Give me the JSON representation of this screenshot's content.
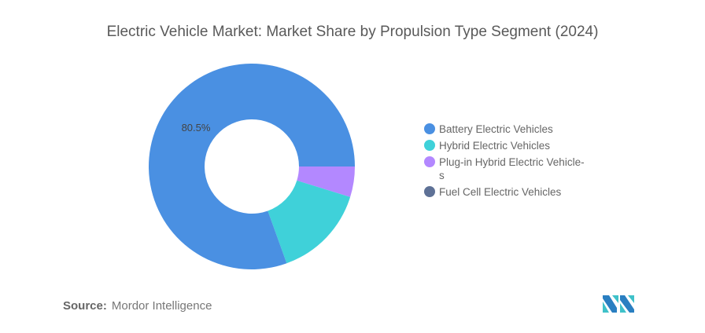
{
  "chart_data": {
    "type": "pie",
    "variant": "donut",
    "title": "Electric Vehicle Market: Market Share by Propulsion Type Segment (2024)",
    "unit": "%",
    "categories": [
      "Battery Electric Vehicles",
      "Hybrid Electric Vehicles",
      "Plug-in Hybrid Electric Vehicles",
      "Fuel Cell Electric Vehicles"
    ],
    "values": [
      80.5,
      14.7,
      4.8,
      0.0
    ],
    "colors": [
      "#4a90e2",
      "#3fd1d9",
      "#b388ff",
      "#5e7196"
    ],
    "data_labels": [
      {
        "category": "Battery Electric Vehicles",
        "text": "80.5%"
      }
    ],
    "legend": {
      "position": "right",
      "entries": [
        "Battery Electric Vehicles",
        "Hybrid Electric Vehicles",
        "Plug-in Hybrid Electric Vehicle-s",
        "Fuel Cell Electric Vehicles"
      ]
    }
  },
  "footer": {
    "source_label": "Source:",
    "source_value": "Mordor Intelligence"
  },
  "logo": {
    "name": "mordor-intelligence-logo",
    "colors": [
      "#2a7fc1",
      "#3fc1c9"
    ]
  }
}
